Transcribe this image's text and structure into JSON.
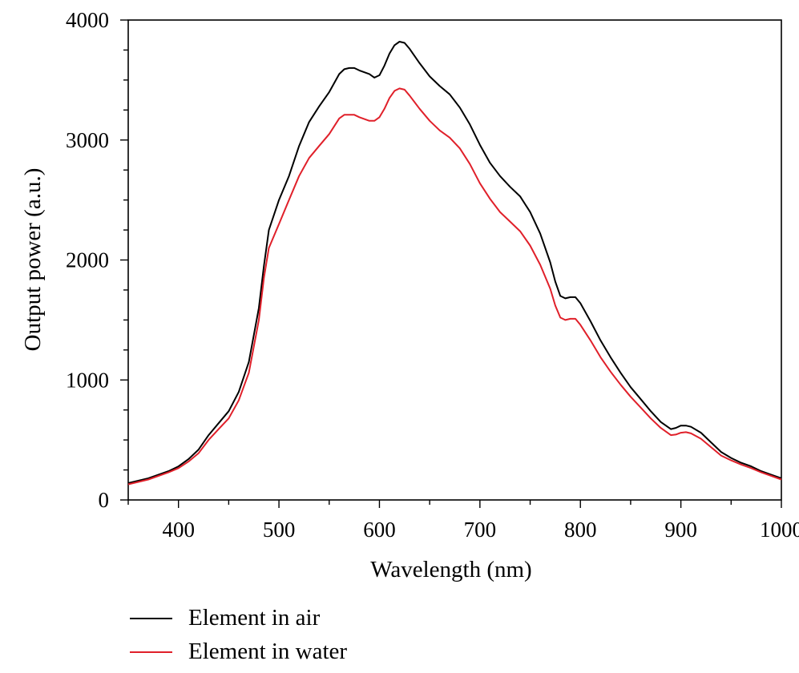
{
  "chart_data": {
    "type": "line",
    "title": "",
    "xlabel": "Wavelength (nm)",
    "ylabel": "Output power (a.u.)",
    "xlim": [
      350,
      1000
    ],
    "ylim": [
      0,
      4000
    ],
    "x_ticks": [
      400,
      500,
      600,
      700,
      800,
      900,
      1000
    ],
    "x_tick_labels": [
      "400",
      "500",
      "600",
      "700",
      "800",
      "900",
      "1000"
    ],
    "y_ticks": [
      0,
      1000,
      2000,
      3000,
      4000
    ],
    "y_tick_labels": [
      "0",
      "1000",
      "2000",
      "3000",
      "4000"
    ],
    "grid": false,
    "legend_position": "bottom-left, below plot",
    "series": [
      {
        "name": "Element in air",
        "color": "#000000",
        "points": [
          [
            350,
            140
          ],
          [
            370,
            180
          ],
          [
            390,
            240
          ],
          [
            400,
            280
          ],
          [
            410,
            340
          ],
          [
            420,
            420
          ],
          [
            430,
            540
          ],
          [
            440,
            640
          ],
          [
            450,
            740
          ],
          [
            460,
            900
          ],
          [
            470,
            1150
          ],
          [
            480,
            1600
          ],
          [
            485,
            1950
          ],
          [
            490,
            2250
          ],
          [
            500,
            2500
          ],
          [
            510,
            2700
          ],
          [
            520,
            2950
          ],
          [
            530,
            3150
          ],
          [
            540,
            3280
          ],
          [
            550,
            3400
          ],
          [
            560,
            3550
          ],
          [
            565,
            3590
          ],
          [
            570,
            3600
          ],
          [
            575,
            3600
          ],
          [
            580,
            3580
          ],
          [
            590,
            3550
          ],
          [
            595,
            3520
          ],
          [
            600,
            3540
          ],
          [
            605,
            3620
          ],
          [
            610,
            3720
          ],
          [
            615,
            3790
          ],
          [
            620,
            3820
          ],
          [
            625,
            3810
          ],
          [
            630,
            3760
          ],
          [
            640,
            3640
          ],
          [
            650,
            3530
          ],
          [
            660,
            3450
          ],
          [
            670,
            3380
          ],
          [
            680,
            3270
          ],
          [
            690,
            3130
          ],
          [
            700,
            2960
          ],
          [
            710,
            2810
          ],
          [
            720,
            2700
          ],
          [
            730,
            2610
          ],
          [
            740,
            2530
          ],
          [
            750,
            2400
          ],
          [
            760,
            2220
          ],
          [
            770,
            1980
          ],
          [
            775,
            1820
          ],
          [
            780,
            1700
          ],
          [
            785,
            1680
          ],
          [
            790,
            1690
          ],
          [
            795,
            1690
          ],
          [
            800,
            1640
          ],
          [
            810,
            1490
          ],
          [
            820,
            1330
          ],
          [
            830,
            1190
          ],
          [
            840,
            1060
          ],
          [
            850,
            940
          ],
          [
            860,
            840
          ],
          [
            870,
            740
          ],
          [
            880,
            650
          ],
          [
            890,
            590
          ],
          [
            895,
            600
          ],
          [
            900,
            620
          ],
          [
            905,
            620
          ],
          [
            910,
            610
          ],
          [
            920,
            560
          ],
          [
            930,
            480
          ],
          [
            940,
            400
          ],
          [
            950,
            350
          ],
          [
            960,
            310
          ],
          [
            970,
            280
          ],
          [
            980,
            240
          ],
          [
            990,
            210
          ],
          [
            1000,
            180
          ]
        ]
      },
      {
        "name": "Element in water",
        "color": "#e0202a",
        "points": [
          [
            350,
            130
          ],
          [
            370,
            170
          ],
          [
            390,
            230
          ],
          [
            400,
            265
          ],
          [
            410,
            320
          ],
          [
            420,
            390
          ],
          [
            430,
            500
          ],
          [
            440,
            590
          ],
          [
            450,
            680
          ],
          [
            460,
            830
          ],
          [
            470,
            1060
          ],
          [
            480,
            1500
          ],
          [
            485,
            1850
          ],
          [
            490,
            2100
          ],
          [
            500,
            2300
          ],
          [
            510,
            2500
          ],
          [
            520,
            2700
          ],
          [
            530,
            2850
          ],
          [
            540,
            2950
          ],
          [
            550,
            3050
          ],
          [
            560,
            3180
          ],
          [
            565,
            3210
          ],
          [
            570,
            3210
          ],
          [
            575,
            3210
          ],
          [
            580,
            3190
          ],
          [
            590,
            3160
          ],
          [
            595,
            3160
          ],
          [
            600,
            3190
          ],
          [
            605,
            3260
          ],
          [
            610,
            3350
          ],
          [
            615,
            3410
          ],
          [
            620,
            3430
          ],
          [
            625,
            3420
          ],
          [
            630,
            3370
          ],
          [
            640,
            3260
          ],
          [
            650,
            3160
          ],
          [
            660,
            3080
          ],
          [
            670,
            3020
          ],
          [
            680,
            2930
          ],
          [
            690,
            2800
          ],
          [
            700,
            2640
          ],
          [
            710,
            2510
          ],
          [
            720,
            2400
          ],
          [
            730,
            2320
          ],
          [
            740,
            2240
          ],
          [
            750,
            2120
          ],
          [
            760,
            1960
          ],
          [
            770,
            1760
          ],
          [
            775,
            1620
          ],
          [
            780,
            1520
          ],
          [
            785,
            1500
          ],
          [
            790,
            1510
          ],
          [
            795,
            1510
          ],
          [
            800,
            1460
          ],
          [
            810,
            1330
          ],
          [
            820,
            1190
          ],
          [
            830,
            1070
          ],
          [
            840,
            960
          ],
          [
            850,
            860
          ],
          [
            860,
            770
          ],
          [
            870,
            680
          ],
          [
            880,
            600
          ],
          [
            890,
            540
          ],
          [
            895,
            545
          ],
          [
            900,
            560
          ],
          [
            905,
            565
          ],
          [
            910,
            555
          ],
          [
            920,
            510
          ],
          [
            930,
            440
          ],
          [
            940,
            370
          ],
          [
            950,
            330
          ],
          [
            960,
            295
          ],
          [
            970,
            265
          ],
          [
            980,
            230
          ],
          [
            990,
            200
          ],
          [
            1000,
            170
          ]
        ]
      }
    ]
  }
}
